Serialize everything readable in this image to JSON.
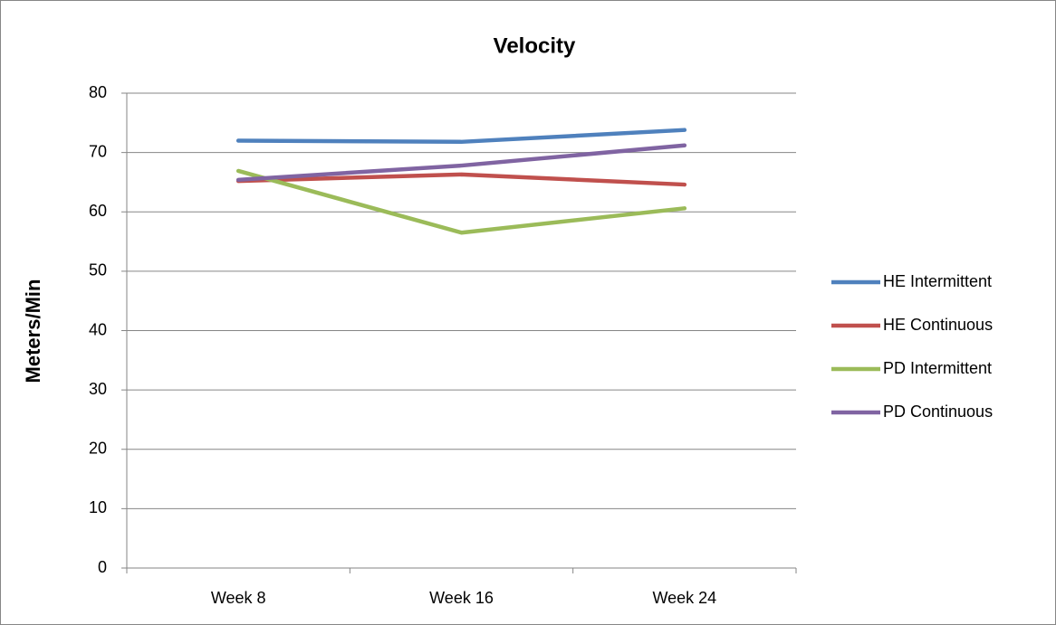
{
  "chart_data": {
    "type": "line",
    "title": "Velocity",
    "y_label": "Meters/Min",
    "categories": [
      "Week 8",
      "Week 16",
      "Week 24"
    ],
    "series": [
      {
        "name": "HE Intermittent",
        "color": "#4f81bd",
        "values": [
          72.0,
          71.8,
          73.8
        ]
      },
      {
        "name": "HE Continuous",
        "color": "#c0504d",
        "values": [
          65.2,
          66.3,
          64.6
        ]
      },
      {
        "name": "PD Intermittent",
        "color": "#9bbb59",
        "values": [
          66.9,
          56.5,
          60.6
        ]
      },
      {
        "name": "PD Continuous",
        "color": "#8064a2",
        "values": [
          65.4,
          67.8,
          71.2
        ]
      }
    ],
    "ylim": [
      0,
      80
    ],
    "yticks": [
      0,
      10,
      20,
      30,
      40,
      50,
      60,
      70,
      80
    ],
    "grid": true,
    "legend": "right"
  }
}
